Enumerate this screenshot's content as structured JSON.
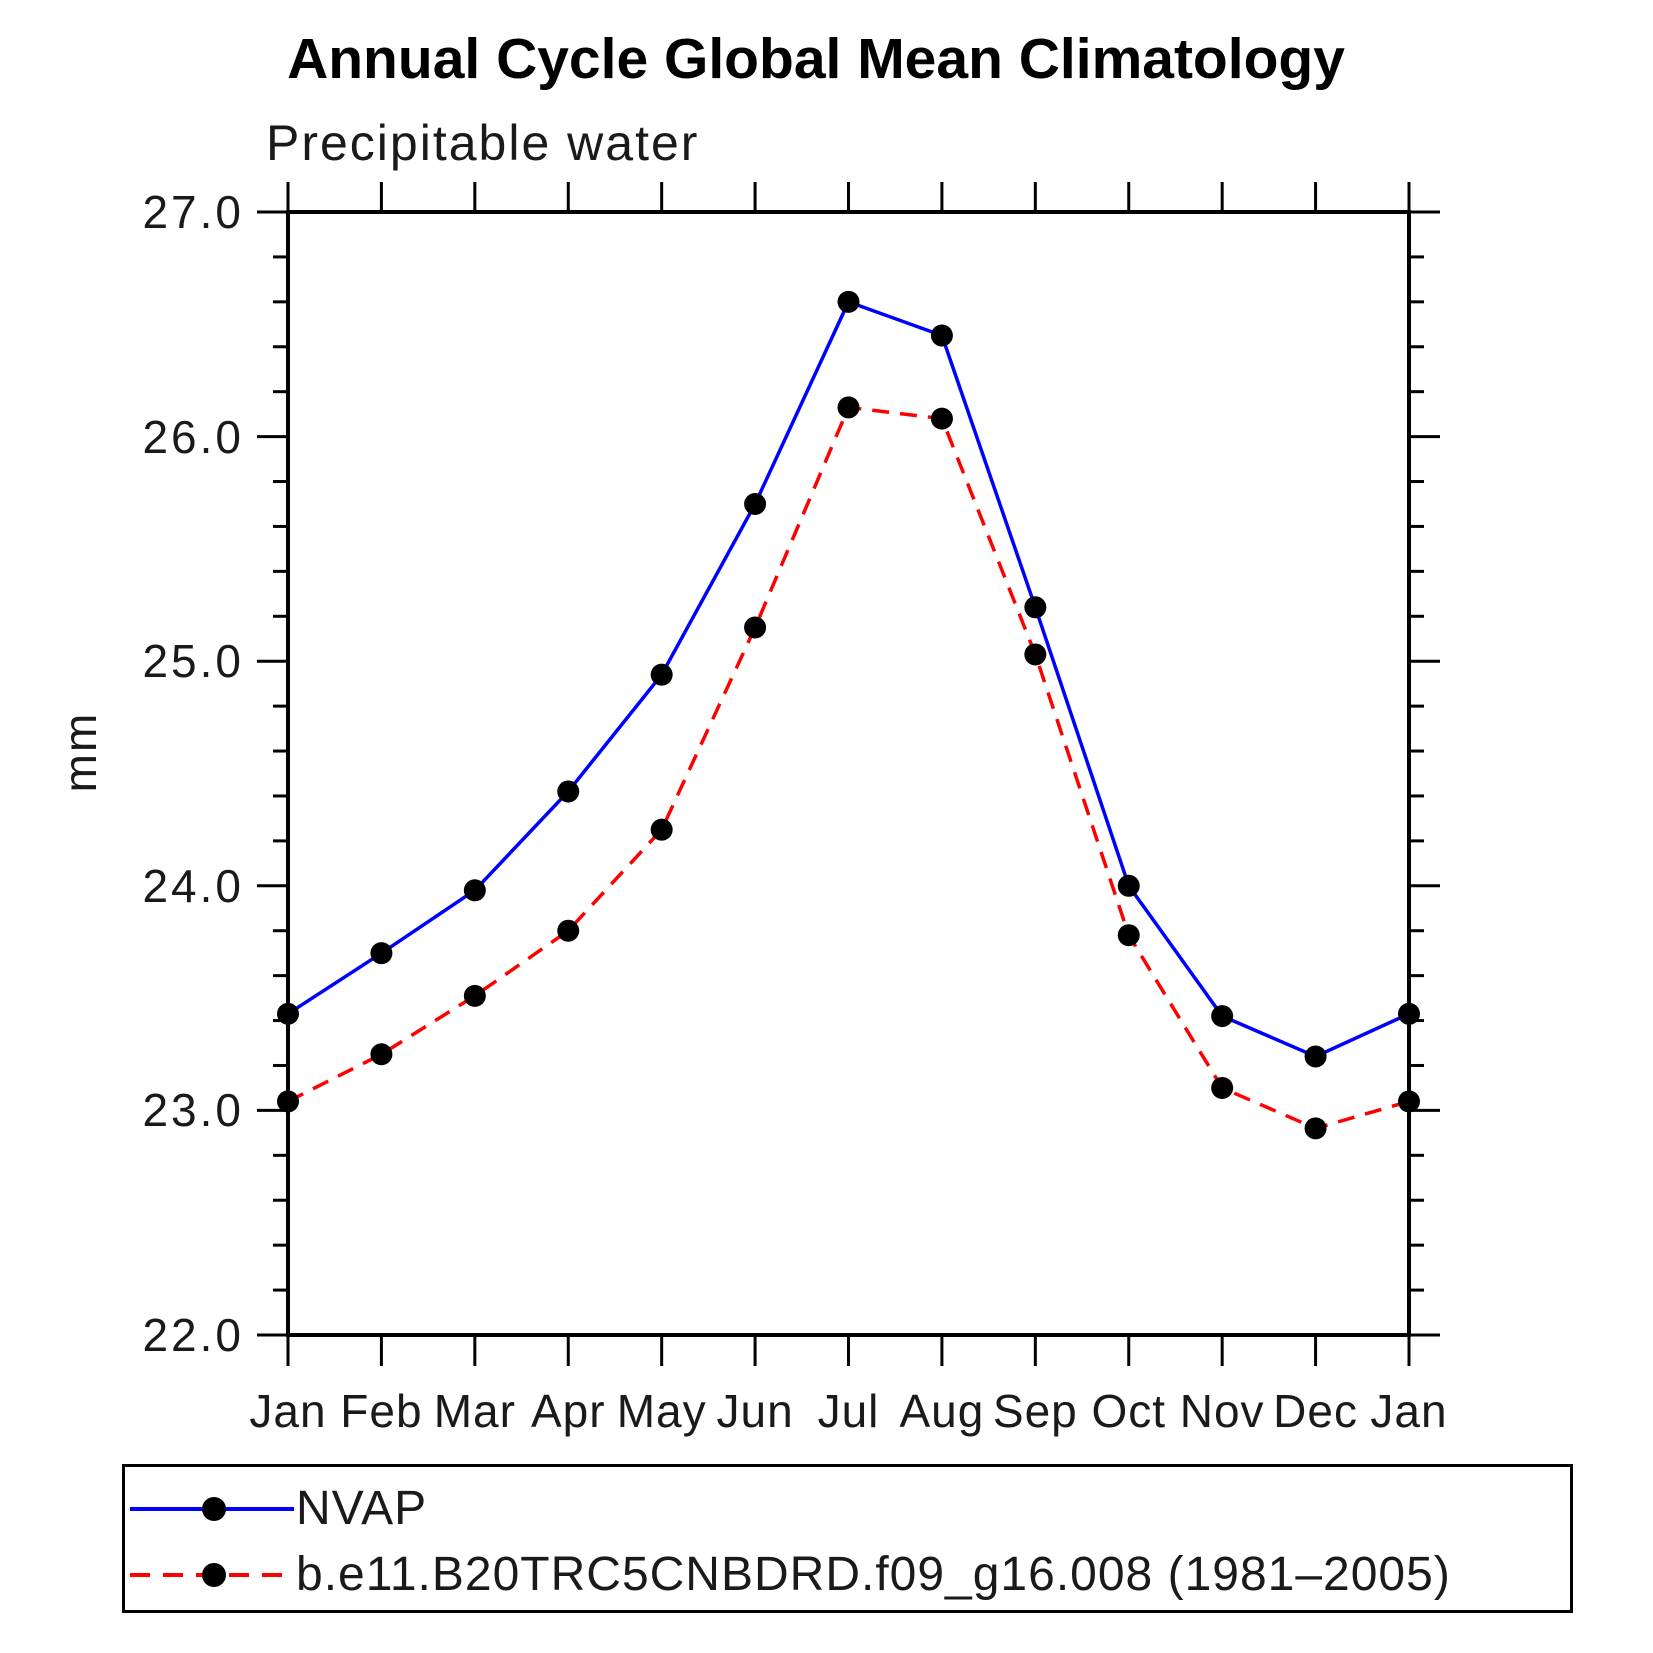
{
  "header": {
    "title": "Annual Cycle Global Mean Climatology",
    "subtitle": "Precipitable water"
  },
  "y_axis": {
    "unit_label": "mm",
    "tick_labels": [
      "27.0",
      "26.0",
      "25.0",
      "24.0",
      "23.0",
      "22.0"
    ],
    "tick_values": [
      27.0,
      26.0,
      25.0,
      24.0,
      23.0,
      22.0
    ],
    "minor_tick_step": 0.2,
    "range": [
      22.0,
      27.0
    ]
  },
  "x_axis": {
    "tick_labels": [
      "Jan",
      "Feb",
      "Mar",
      "Apr",
      "May",
      "Jun",
      "Jul",
      "Aug",
      "Sep",
      "Oct",
      "Nov",
      "Dec",
      "Jan"
    ]
  },
  "chart_data": {
    "type": "line",
    "title": "Annual Cycle Global Mean Climatology",
    "subtitle": "Precipitable water",
    "ylabel": "mm",
    "ylim": [
      22.0,
      27.0
    ],
    "grid": false,
    "legend_position": "bottom-left-box",
    "categories": [
      "Jan",
      "Feb",
      "Mar",
      "Apr",
      "May",
      "Jun",
      "Jul",
      "Aug",
      "Sep",
      "Oct",
      "Nov",
      "Dec",
      "Jan"
    ],
    "series": [
      {
        "name": "NVAP",
        "color": "#0000ff",
        "line_style": "solid",
        "marker": "filled-circle",
        "marker_color": "#000000",
        "values": [
          23.43,
          23.7,
          23.98,
          24.42,
          24.94,
          25.7,
          26.6,
          26.45,
          25.24,
          24.0,
          23.42,
          23.24,
          23.43
        ]
      },
      {
        "name": "b.e11.B20TRC5CNBDRD.f09_g16.008 (1981–2005)",
        "color": "#ff0000",
        "line_style": "dashed",
        "marker": "filled-circle",
        "marker_color": "#000000",
        "values": [
          23.04,
          23.25,
          23.51,
          23.8,
          24.25,
          25.15,
          26.13,
          26.08,
          25.03,
          23.78,
          23.1,
          22.92,
          23.04
        ]
      }
    ]
  },
  "legend": {
    "items": [
      {
        "label": "NVAP",
        "color": "#0000ff",
        "line_style": "solid"
      },
      {
        "label": "b.e11.B20TRC5CNBDRD.f09_g16.008 (1981–2005)",
        "color": "#ff0000",
        "line_style": "dashed"
      }
    ]
  }
}
